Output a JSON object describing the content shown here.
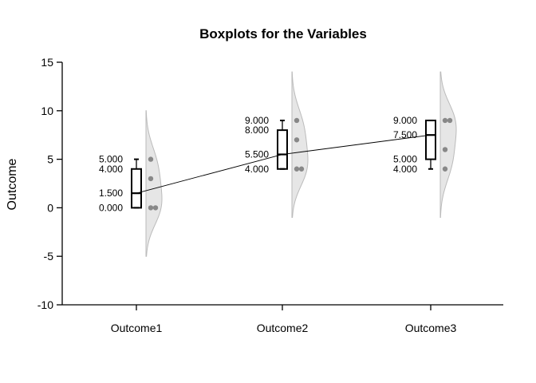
{
  "chart_data": {
    "type": "boxplot",
    "title": "Boxplots for the Variables",
    "ylabel": "Outcome",
    "xlabel": "",
    "ylim": [
      -10,
      15
    ],
    "yticks": [
      -10,
      -5,
      0,
      5,
      10,
      15
    ],
    "categories": [
      "Outcome1",
      "Outcome2",
      "Outcome3"
    ],
    "boxes": [
      {
        "category": "Outcome1",
        "min": 0,
        "q1": 0,
        "median": 1.5,
        "q3": 4,
        "max": 5,
        "points": [
          0,
          0,
          3,
          5
        ],
        "stat_labels": [
          "5.000",
          "4.000",
          "1.500",
          "0.000"
        ]
      },
      {
        "category": "Outcome2",
        "min": 4,
        "q1": 4,
        "median": 5.5,
        "q3": 8,
        "max": 9,
        "points": [
          4,
          4,
          7,
          9
        ],
        "stat_labels": [
          "9.000",
          "8.000",
          "5.500",
          "4.000"
        ]
      },
      {
        "category": "Outcome3",
        "min": 4,
        "q1": 5,
        "median": 7.5,
        "q3": 9,
        "max": 9,
        "points": [
          4,
          6,
          9,
          9
        ],
        "stat_labels": [
          "9.000",
          "7.500",
          "5.000",
          "4.000"
        ]
      }
    ],
    "median_line": [
      1.5,
      5.5,
      7.5
    ],
    "colors": {
      "box": "#000000",
      "density_fill": "#e6e6e6",
      "density_stroke": "#bbbbbb",
      "points": "#888888"
    }
  }
}
